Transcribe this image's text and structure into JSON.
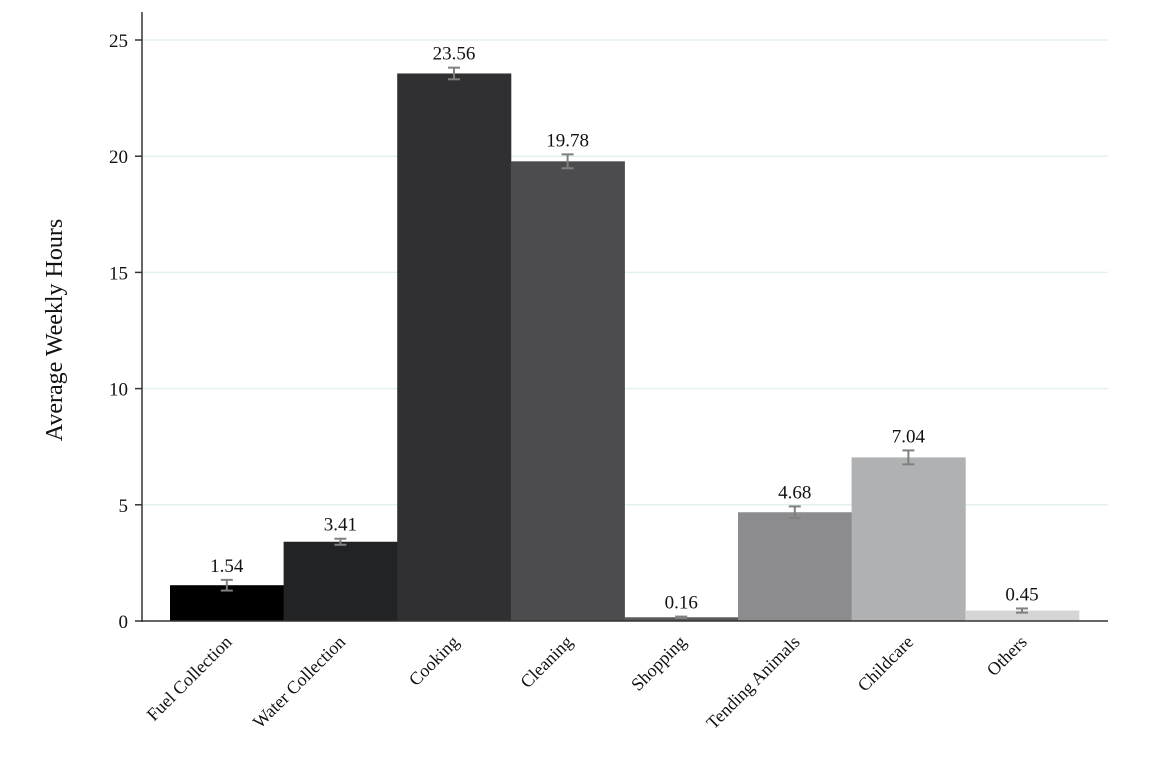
{
  "chart_data": {
    "type": "bar",
    "title": "",
    "xlabel": "",
    "ylabel": "Average Weekly Hours",
    "ylim": [
      0,
      25
    ],
    "yticks": [
      0,
      5,
      10,
      15,
      20,
      25
    ],
    "grid": true,
    "categories": [
      "Fuel Collection",
      "Water Collection",
      "Cooking",
      "Cleaning",
      "Shopping",
      "Tending Animals",
      "Childcare",
      "Others"
    ],
    "values": [
      1.54,
      3.41,
      23.56,
      19.78,
      0.16,
      4.68,
      7.04,
      0.45
    ],
    "data_labels": [
      "1.54",
      "3.41",
      "23.56",
      "19.78",
      "0.16",
      "4.68",
      "7.04",
      "0.45"
    ],
    "error": [
      0.23,
      0.13,
      0.25,
      0.3,
      0.03,
      0.25,
      0.3,
      0.09
    ],
    "colors": [
      "#000000",
      "#222325",
      "#303033",
      "#4c4c4e",
      "#5a5a5c",
      "#8c8c8e",
      "#b0b1b3",
      "#d5d5d6"
    ],
    "grid_color": "#e4f0f0",
    "error_color": "#808080"
  }
}
